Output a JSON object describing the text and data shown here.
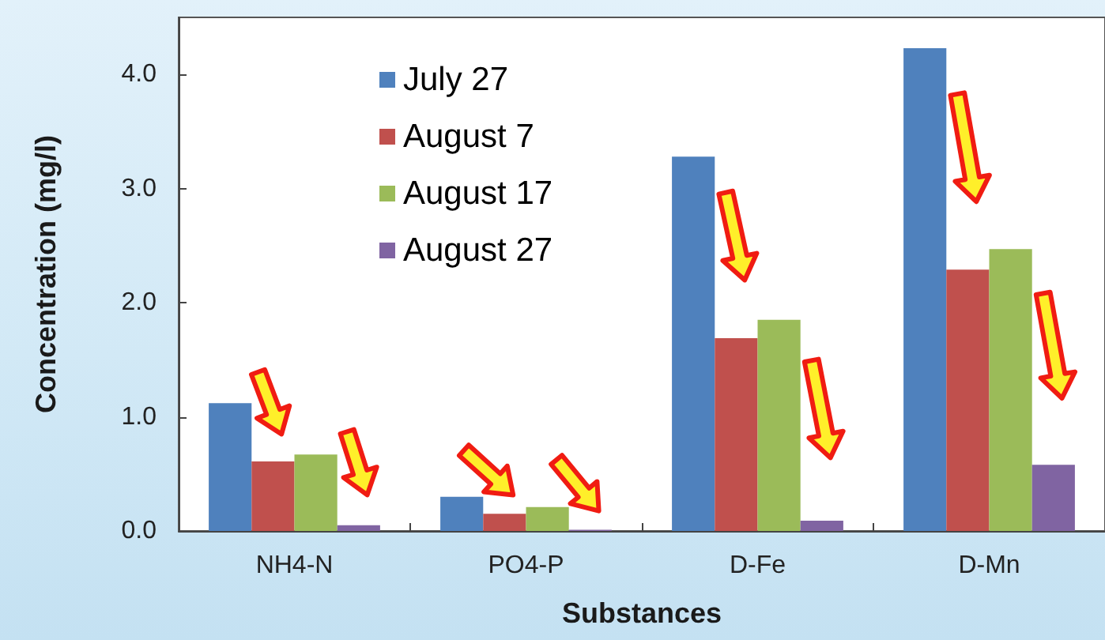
{
  "chart_data": {
    "type": "bar",
    "xlabel": "Substances",
    "ylabel": "Concentration (mg/l)",
    "categories": [
      "NH4-N",
      "PO4-P",
      "D-Fe",
      "D-Mn"
    ],
    "series": [
      {
        "name": "July 27",
        "color": "#4f81bd",
        "values": [
          1.12,
          0.3,
          3.28,
          4.23
        ]
      },
      {
        "name": "August 7",
        "color": "#c0504d",
        "values": [
          0.61,
          0.15,
          1.69,
          2.29
        ]
      },
      {
        "name": "August 17",
        "color": "#9bbb59",
        "values": [
          0.67,
          0.21,
          1.85,
          2.47
        ]
      },
      {
        "name": "August 27",
        "color": "#8064a2",
        "values": [
          0.05,
          0.01,
          0.09,
          0.58
        ]
      }
    ],
    "ylim": [
      0,
      4.5
    ],
    "yticks": [
      {
        "value": 0,
        "label": "0.0"
      },
      {
        "value": 1,
        "label": "1.0"
      },
      {
        "value": 2,
        "label": "2.0"
      },
      {
        "value": 3,
        "label": "3.0"
      },
      {
        "value": 4,
        "label": "4.0"
      }
    ],
    "grid": false,
    "legend": "top left"
  }
}
